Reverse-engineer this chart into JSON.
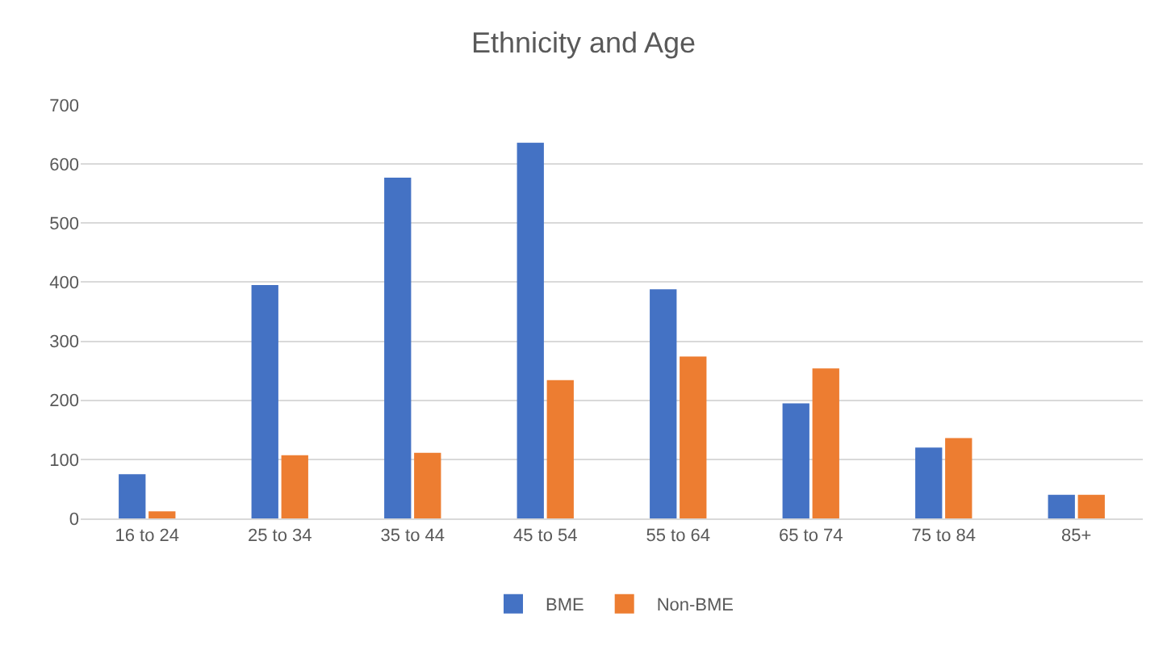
{
  "chart_data": {
    "type": "bar",
    "title": "Ethnicity and Age",
    "categories": [
      "16 to 24",
      "25 to 34",
      "35 to 44",
      "45 to 54",
      "55 to 64",
      "65 to 74",
      "75 to 84",
      "85+"
    ],
    "series": [
      {
        "name": "BME",
        "color": "#4472c4",
        "values": [
          75,
          395,
          577,
          636,
          388,
          195,
          120,
          40
        ]
      },
      {
        "name": "Non-BME",
        "color": "#ed7d31",
        "values": [
          12,
          107,
          111,
          234,
          274,
          254,
          136,
          40
        ]
      }
    ],
    "ylim": [
      0,
      700
    ],
    "yticks": [
      0,
      100,
      200,
      300,
      400,
      500,
      600,
      700
    ],
    "grid": "y",
    "legend": "bottom"
  }
}
